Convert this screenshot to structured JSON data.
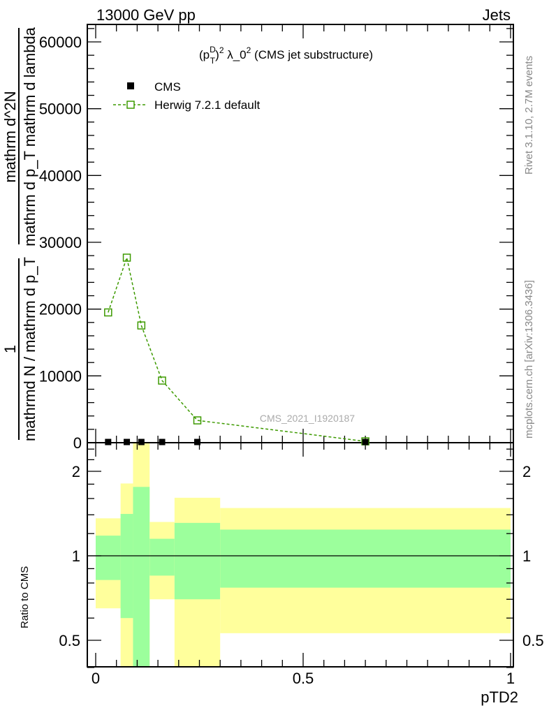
{
  "header": {
    "left": "13000 GeV pp",
    "right": "Jets"
  },
  "side_text": {
    "rivet": "Rivet 3.1.10,  2.7M events",
    "mcplots": "mcplots.cern.ch [arXiv:1306.3436]"
  },
  "colors": {
    "herwig": "#3d9a00",
    "cms": "#000000",
    "band_inner": "#9cff9c",
    "band_outer": "#ffff9c"
  },
  "chart_data": [
    {
      "type": "line",
      "title_parts": {
        "base": "(p",
        "sup1": "D",
        "sub1": "T",
        "close": ")",
        "sup2": "2",
        "rest": " λ_0",
        "sup3": "2",
        "tail": " (CMS jet substructure)"
      },
      "ylabel": {
        "num1": "1",
        "den1": "mathrmd N / mathrm d p_T",
        "num2": "mathrm d^2N",
        "den2": "mathrm d p_T mathrm d lambda"
      },
      "xlim": [
        0,
        1
      ],
      "ylim": [
        0,
        62000
      ],
      "yticks": [
        0,
        10000,
        20000,
        30000,
        40000,
        50000,
        60000
      ],
      "ytick_labels": [
        "0",
        "10000",
        "20000",
        "30000",
        "40000",
        "50000",
        "60000"
      ],
      "watermark": "CMS_2021_I1920187",
      "legend": [
        {
          "label": "CMS"
        },
        {
          "label": "Herwig 7.2.1 default"
        }
      ],
      "legend_placement": "top-left",
      "series": [
        {
          "name": "CMS",
          "x": [
            0.03,
            0.075,
            0.11,
            0.16,
            0.245,
            0.65
          ],
          "y": [
            50,
            50,
            50,
            50,
            50,
            50
          ]
        },
        {
          "name": "Herwig 7.2.1 default",
          "x": [
            0.03,
            0.075,
            0.11,
            0.16,
            0.245,
            0.65
          ],
          "y": [
            19500,
            27700,
            17550,
            9300,
            3340,
            200
          ]
        }
      ]
    },
    {
      "type": "area",
      "ylabel": "Ratio to CMS",
      "xlabel": "pTD2",
      "yscale": "log",
      "ylim": [
        0.4,
        2.5
      ],
      "yticks": [
        0.5,
        1,
        2
      ],
      "ytick_labels": [
        "0.5",
        "1",
        "2"
      ],
      "xticks": [
        0,
        0.5,
        1
      ],
      "xtick_labels": [
        "0",
        "0.5",
        "1"
      ],
      "bin_edges": [
        0,
        0.06,
        0.09,
        0.13,
        0.19,
        0.3,
        1.0
      ],
      "inner_band": {
        "low": [
          0.82,
          0.6,
          0.3,
          0.85,
          0.7,
          0.77
        ],
        "high": [
          1.18,
          1.41,
          1.76,
          1.15,
          1.31,
          1.24
        ]
      },
      "outer_band": {
        "low": [
          0.65,
          0.3,
          0.3,
          0.7,
          0.3,
          0.53
        ],
        "high": [
          1.36,
          1.81,
          3.0,
          1.32,
          1.61,
          1.48
        ]
      }
    }
  ]
}
